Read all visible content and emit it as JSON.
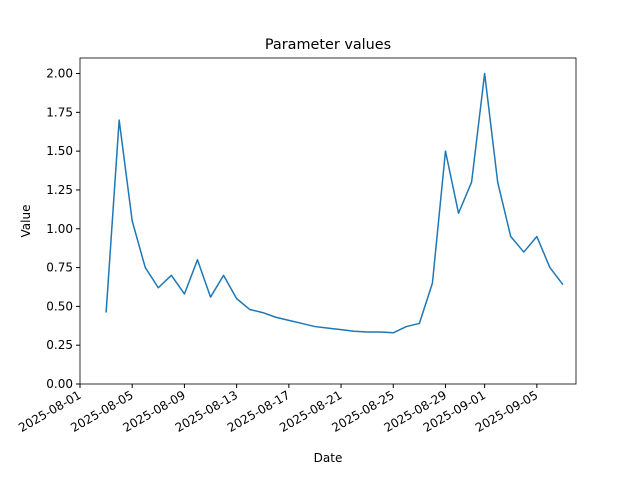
{
  "chart_data": {
    "type": "line",
    "title": "Parameter values",
    "x_label": "Date",
    "y_label": "Value",
    "x": [
      "2025-08-03",
      "2025-08-04",
      "2025-08-05",
      "2025-08-06",
      "2025-08-07",
      "2025-08-08",
      "2025-08-09",
      "2025-08-10",
      "2025-08-11",
      "2025-08-12",
      "2025-08-13",
      "2025-08-14",
      "2025-08-15",
      "2025-08-16",
      "2025-08-17",
      "2025-08-18",
      "2025-08-19",
      "2025-08-20",
      "2025-08-21",
      "2025-08-22",
      "2025-08-23",
      "2025-08-24",
      "2025-08-25",
      "2025-08-26",
      "2025-08-27",
      "2025-08-28",
      "2025-08-29",
      "2025-08-30",
      "2025-08-31",
      "2025-09-01",
      "2025-09-02",
      "2025-09-03",
      "2025-09-04",
      "2025-09-05",
      "2025-09-06",
      "2025-09-07"
    ],
    "series": [
      {
        "color": "#1f77b4",
        "values": [
          0.46,
          1.7,
          1.05,
          0.75,
          0.62,
          0.7,
          0.58,
          0.8,
          0.56,
          0.7,
          0.55,
          0.48,
          0.46,
          0.43,
          0.41,
          0.39,
          0.37,
          0.36,
          0.35,
          0.34,
          0.335,
          0.335,
          0.33,
          0.37,
          0.39,
          0.65,
          1.5,
          1.1,
          1.3,
          2.0,
          1.3,
          0.95,
          0.85,
          0.95,
          0.75,
          0.64
        ]
      }
    ],
    "xlim": [
      "2025-08-01",
      "2025-09-08"
    ],
    "xticks": [
      "2025-08-01",
      "2025-08-05",
      "2025-08-09",
      "2025-08-13",
      "2025-08-17",
      "2025-08-21",
      "2025-08-25",
      "2025-08-29",
      "2025-09-01",
      "2025-09-05"
    ],
    "ylim": [
      0,
      2.1
    ],
    "yticks": [
      {
        "value": 0,
        "label": "0.00"
      },
      {
        "value": 0.25,
        "label": "0.25"
      },
      {
        "value": 0.5,
        "label": "0.50"
      },
      {
        "value": 0.75,
        "label": "0.75"
      },
      {
        "value": 1,
        "label": "1.00"
      },
      {
        "value": 1.25,
        "label": "1.25"
      },
      {
        "value": 1.5,
        "label": "1.50"
      },
      {
        "value": 1.75,
        "label": "1.75"
      },
      {
        "value": 2,
        "label": "2.00"
      }
    ],
    "grid": false
  }
}
